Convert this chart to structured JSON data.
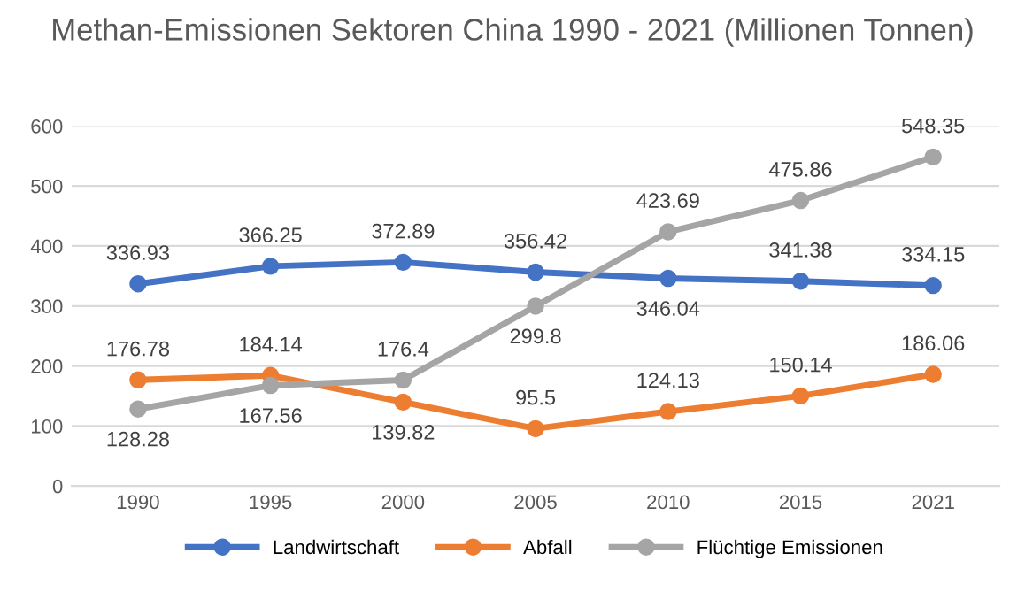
{
  "chart_data": {
    "type": "line",
    "title": "Methan-Emissionen Sektoren China 1990 - 2021 (Millionen Tonnen)",
    "categories": [
      "1990",
      "1995",
      "2000",
      "2005",
      "2010",
      "2015",
      "2021"
    ],
    "series": [
      {
        "name": "Landwirtschaft",
        "color": "#4472c4",
        "values": [
          336.93,
          366.25,
          372.89,
          356.42,
          346.04,
          341.38,
          334.15
        ]
      },
      {
        "name": "Abfall",
        "color": "#ed7d31",
        "values": [
          176.78,
          184.14,
          139.82,
          95.5,
          124.13,
          150.14,
          186.06
        ]
      },
      {
        "name": "Flüchtige Emissionen",
        "color": "#a5a5a5",
        "values": [
          128.28,
          167.56,
          176.4,
          299.8,
          423.69,
          475.86,
          548.35
        ]
      }
    ],
    "ylim": [
      0,
      600
    ],
    "yticks": [
      0,
      100,
      200,
      300,
      400,
      500,
      600
    ],
    "grid": "y",
    "legend": "bottom",
    "marker": "circle",
    "line_style": "solid",
    "data_labels": true
  }
}
